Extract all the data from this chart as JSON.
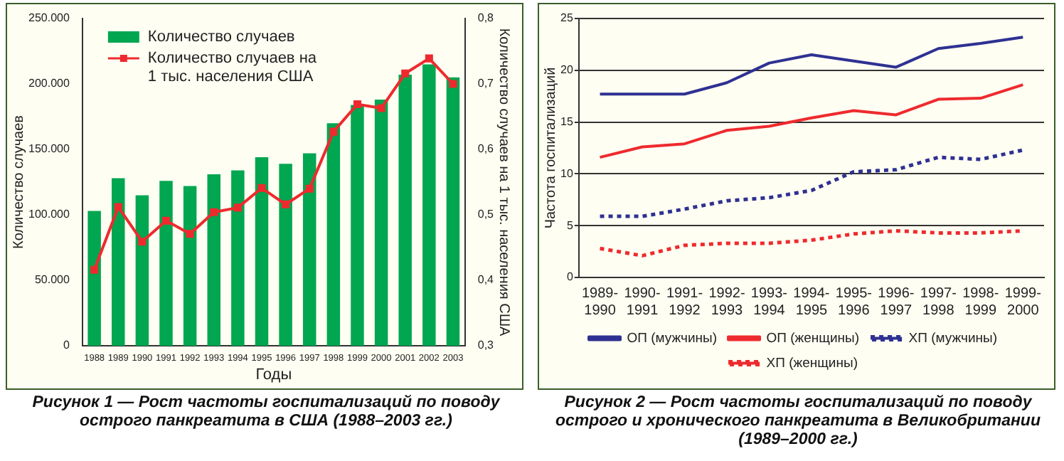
{
  "chart_data": [
    {
      "type": "bar",
      "title": "Рисунок 1 — Рост частоты госпитализаций по поводу острого панкреатита в США (1988–2003 гг.)",
      "xlabel": "Годы",
      "ylabel": "Количество случаев",
      "y2label": "Количество случаев на 1 тыс. населения США",
      "categories": [
        "1988",
        "1989",
        "1990",
        "1991",
        "1992",
        "1993",
        "1994",
        "1995",
        "1996",
        "1997",
        "1998",
        "1999",
        "2000",
        "2001",
        "2002",
        "2003"
      ],
      "series": [
        {
          "name": "Количество случаев",
          "type": "bar",
          "color": "#00a650",
          "values": [
            103000,
            128000,
            115000,
            126000,
            122000,
            131000,
            134000,
            144000,
            139000,
            147000,
            170000,
            184000,
            188000,
            207000,
            215000,
            205000
          ]
        },
        {
          "name": "Количество случаев на 1 тыс. населения США",
          "type": "line",
          "axis": "y2",
          "color": "#ee2a2e",
          "marker": "square",
          "values": [
            0.416,
            0.512,
            0.459,
            0.491,
            0.471,
            0.504,
            0.511,
            0.541,
            0.516,
            0.54,
            0.627,
            0.669,
            0.663,
            0.716,
            0.739,
            0.7
          ]
        }
      ],
      "ylim": [
        0,
        250000
      ],
      "yticks": [
        {
          "value": 0,
          "label": "0"
        },
        {
          "value": 50000,
          "label": "50.000"
        },
        {
          "value": 100000,
          "label": "100.000"
        },
        {
          "value": 150000,
          "label": "150.000"
        },
        {
          "value": 200000,
          "label": "200.000"
        },
        {
          "value": 250000,
          "label": "250.000"
        }
      ],
      "y2lim": [
        0.3,
        0.8
      ],
      "y2ticks": [
        {
          "value": 0.3,
          "label": "0,3"
        },
        {
          "value": 0.4,
          "label": "0,4"
        },
        {
          "value": 0.5,
          "label": "0,5"
        },
        {
          "value": 0.6,
          "label": "0,6"
        },
        {
          "value": 0.7,
          "label": "0,7"
        },
        {
          "value": 0.8,
          "label": "0,8"
        }
      ],
      "legend": "top left"
    },
    {
      "type": "line",
      "title": "Рисунок 2 — Рост частоты госпитализаций по поводу острого и хронического панкреатита в Великобритании (1989–2000 гг.)",
      "ylabel": "Частота госпитализаций",
      "categories": [
        "1989-1990",
        "1990-1991",
        "1991-1992",
        "1992-1993",
        "1993-1994",
        "1994-1995",
        "1995-1996",
        "1996-1997",
        "1997-1998",
        "1998-1999",
        "1999-2000"
      ],
      "series": [
        {
          "name": "ОП (мужчины)",
          "color": "#2e3192",
          "line_style": "solid",
          "values": [
            17.7,
            17.7,
            17.7,
            18.8,
            20.7,
            21.5,
            20.9,
            20.3,
            22.1,
            22.6,
            23.2
          ]
        },
        {
          "name": "ОП (женщины)",
          "color": "#ee2a2e",
          "line_style": "solid",
          "values": [
            11.6,
            12.6,
            12.9,
            14.2,
            14.6,
            15.4,
            16.1,
            15.7,
            17.2,
            17.3,
            18.6
          ]
        },
        {
          "name": "ХП (мужчины)",
          "color": "#2e3192",
          "line_style": "dotted",
          "values": [
            5.9,
            5.9,
            6.6,
            7.4,
            7.7,
            8.4,
            10.2,
            10.4,
            11.6,
            11.4,
            12.3
          ]
        },
        {
          "name": "ХП (женщины)",
          "color": "#ee2a2e",
          "line_style": "dotted",
          "values": [
            2.8,
            2.1,
            3.1,
            3.3,
            3.3,
            3.6,
            4.2,
            4.5,
            4.3,
            4.3,
            4.5
          ]
        }
      ],
      "ylim": [
        0,
        25
      ],
      "yticks": [
        0,
        5,
        10,
        15,
        20,
        25
      ],
      "grid": "y",
      "marker": "none",
      "legend": "bottom"
    }
  ]
}
